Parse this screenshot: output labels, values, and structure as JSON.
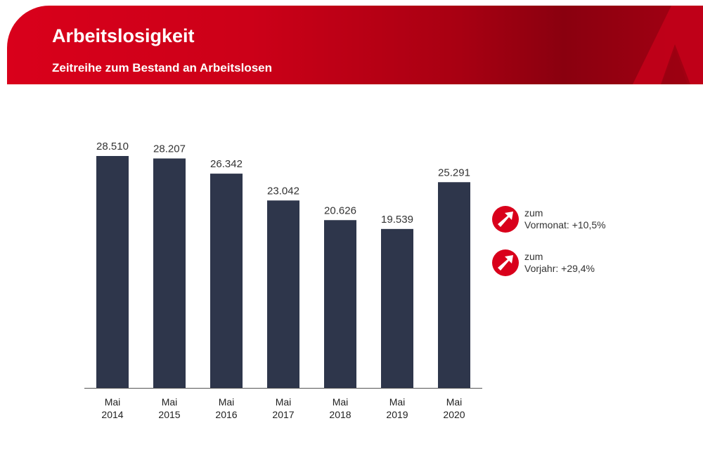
{
  "header": {
    "title": "Arbeitslosigkeit",
    "subtitle": "Zeitreihe zum Bestand an Arbeitslosen"
  },
  "colors": {
    "brand": "#d9001b",
    "bar": "#2e364b"
  },
  "chart_data": {
    "type": "bar",
    "categories": [
      [
        "Mai",
        "2014"
      ],
      [
        "Mai",
        "2015"
      ],
      [
        "Mai",
        "2016"
      ],
      [
        "Mai",
        "2017"
      ],
      [
        "Mai",
        "2018"
      ],
      [
        "Mai",
        "2019"
      ],
      [
        "Mai",
        "2020"
      ]
    ],
    "values": [
      28510,
      28207,
      26342,
      23042,
      20626,
      19539,
      25291
    ],
    "data_labels": [
      "28.510",
      "28.207",
      "26.342",
      "23.042",
      "20.626",
      "19.539",
      "25.291"
    ],
    "ylim": [
      0,
      28510
    ],
    "grid": false
  },
  "indicators": [
    {
      "icon": "arrow-up-right-icon",
      "line1": "zum",
      "line2": "Vormonat: +10,5%"
    },
    {
      "icon": "arrow-up-right-icon",
      "line1": "zum",
      "line2": "Vorjahr: +29,4%"
    }
  ]
}
